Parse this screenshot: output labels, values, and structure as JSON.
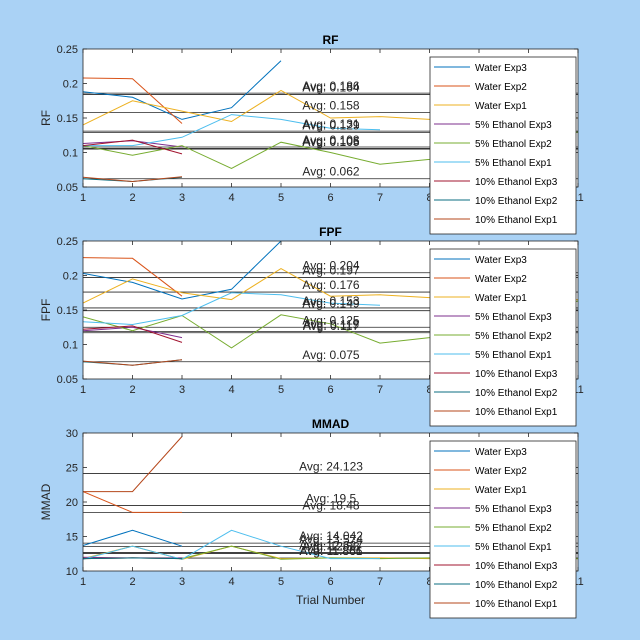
{
  "figure": {
    "background": "#aad2f5"
  },
  "series_colors": [
    "#0072BD",
    "#D95319",
    "#EDB120",
    "#7E2F8E",
    "#77AC30",
    "#4DBEEE",
    "#A2142F",
    "#0B6E80",
    "#B5471B"
  ],
  "chart_data": [
    {
      "type": "line",
      "title": "RF",
      "xlabel": "",
      "ylabel": "RF",
      "xlim": [
        1,
        11
      ],
      "ylim": [
        0.05,
        0.25
      ],
      "xticks": [
        "1",
        "2",
        "3",
        "4",
        "5",
        "6",
        "7",
        "8",
        "9",
        "10",
        "11"
      ],
      "yticks": [
        "0.05",
        "0.1",
        "0.15",
        "0.2",
        "0.25"
      ],
      "legend_location": "top-right",
      "series": [
        {
          "name": "Water Exp3",
          "x": [
            1,
            2,
            3,
            4,
            5
          ],
          "y": [
            0.188,
            0.18,
            0.148,
            0.165,
            0.233
          ]
        },
        {
          "name": "Water Exp2",
          "x": [
            1,
            2,
            3
          ],
          "y": [
            0.208,
            0.207,
            0.142
          ]
        },
        {
          "name": "Water Exp1",
          "x": [
            1,
            2,
            3,
            4,
            5,
            6,
            7,
            8,
            9,
            10,
            11
          ],
          "y": [
            0.14,
            0.175,
            0.16,
            0.145,
            0.19,
            0.15,
            0.152,
            0.148,
            0.15,
            0.152,
            0.15
          ]
        },
        {
          "name": "5% Ethanol Exp3",
          "x": [
            1,
            2,
            3
          ],
          "y": [
            0.113,
            0.117,
            0.108
          ]
        },
        {
          "name": "5% Ethanol Exp2",
          "x": [
            1,
            2,
            3,
            4,
            5,
            6,
            7,
            8,
            9,
            10,
            11
          ],
          "y": [
            0.11,
            0.096,
            0.11,
            0.077,
            0.115,
            0.1,
            0.083,
            0.09,
            0.1,
            0.11,
            0.13
          ]
        },
        {
          "name": "5% Ethanol Exp1",
          "x": [
            1,
            2,
            3,
            4,
            5,
            6,
            7
          ],
          "y": [
            0.11,
            0.11,
            0.122,
            0.155,
            0.148,
            0.135,
            0.133
          ]
        },
        {
          "name": "10% Ethanol Exp3",
          "x": [
            1,
            2,
            3
          ],
          "y": [
            0.11,
            0.118,
            0.098
          ]
        },
        {
          "name": "10% Ethanol Exp2",
          "x": [
            1,
            2,
            3
          ],
          "y": [
            0.062,
            0.058,
            0.064
          ]
        },
        {
          "name": "10% Ethanol Exp1",
          "x": [
            1,
            2,
            3
          ],
          "y": [
            0.064,
            0.058,
            0.065
          ]
        }
      ],
      "averages": [
        {
          "label": "Avg: 0.186",
          "value": 0.186
        },
        {
          "label": "Avg: 0.184",
          "value": 0.184
        },
        {
          "label": "Avg: 0.158",
          "value": 0.158
        },
        {
          "label": "Avg: 0.131",
          "value": 0.131
        },
        {
          "label": "Avg: 0.129",
          "value": 0.129
        },
        {
          "label": "Avg: 0.108",
          "value": 0.108
        },
        {
          "label": "Avg: 0.106",
          "value": 0.106
        },
        {
          "label": "Avg: 0.105",
          "value": 0.105
        },
        {
          "label": "Avg: 0.062",
          "value": 0.062
        }
      ]
    },
    {
      "type": "line",
      "title": "FPF",
      "xlabel": "",
      "ylabel": "FPF",
      "xlim": [
        1,
        11
      ],
      "ylim": [
        0.05,
        0.25
      ],
      "xticks": [
        "1",
        "2",
        "3",
        "4",
        "5",
        "6",
        "7",
        "8",
        "9",
        "10",
        "11"
      ],
      "yticks": [
        "0.05",
        "0.1",
        "0.15",
        "0.2",
        "0.25"
      ],
      "legend_location": "top-right",
      "series": [
        {
          "name": "Water Exp3",
          "x": [
            1,
            2,
            3,
            4,
            5
          ],
          "y": [
            0.203,
            0.19,
            0.166,
            0.18,
            0.25
          ]
        },
        {
          "name": "Water Exp2",
          "x": [
            1,
            2,
            3
          ],
          "y": [
            0.226,
            0.225,
            0.17
          ]
        },
        {
          "name": "Water Exp1",
          "x": [
            1,
            2,
            3,
            4,
            5,
            6,
            7,
            8,
            9,
            10,
            11
          ],
          "y": [
            0.16,
            0.195,
            0.175,
            0.165,
            0.21,
            0.17,
            0.172,
            0.168,
            0.17,
            0.16,
            0.165
          ]
        },
        {
          "name": "5% Ethanol Exp3",
          "x": [
            1,
            2,
            3
          ],
          "y": [
            0.12,
            0.125,
            0.11
          ]
        },
        {
          "name": "5% Ethanol Exp2",
          "x": [
            1,
            2,
            3,
            4,
            5,
            6,
            7,
            8,
            9,
            10,
            11
          ],
          "y": [
            0.14,
            0.12,
            0.142,
            0.095,
            0.143,
            0.13,
            0.102,
            0.11,
            0.12,
            0.14,
            0.163
          ]
        },
        {
          "name": "5% Ethanol Exp1",
          "x": [
            1,
            2,
            3,
            4,
            5,
            6,
            7
          ],
          "y": [
            0.133,
            0.129,
            0.142,
            0.175,
            0.172,
            0.16,
            0.157
          ]
        },
        {
          "name": "10% Ethanol Exp3",
          "x": [
            1,
            2,
            3
          ],
          "y": [
            0.122,
            0.127,
            0.103
          ]
        },
        {
          "name": "10% Ethanol Exp2",
          "x": [
            1,
            2,
            3
          ],
          "y": [
            0.075,
            0.07,
            0.078
          ]
        },
        {
          "name": "10% Ethanol Exp1",
          "x": [
            1,
            2,
            3
          ],
          "y": [
            0.076,
            0.07,
            0.078
          ]
        }
      ],
      "averages": [
        {
          "label": "Avg: 0.204",
          "value": 0.204
        },
        {
          "label": "Avg: 0.197",
          "value": 0.197
        },
        {
          "label": "Avg: 0.176",
          "value": 0.176
        },
        {
          "label": "Avg: 0.153",
          "value": 0.153
        },
        {
          "label": "Avg: 0.149",
          "value": 0.149
        },
        {
          "label": "Avg: 0.125",
          "value": 0.125
        },
        {
          "label": "Avg: 0.119",
          "value": 0.119
        },
        {
          "label": "Avg: 0.117",
          "value": 0.117
        },
        {
          "label": "Avg: 0.075",
          "value": 0.075
        }
      ]
    },
    {
      "type": "line",
      "title": "MMAD",
      "xlabel": "Trial Number",
      "ylabel": "MMAD",
      "xlim": [
        1,
        11
      ],
      "ylim": [
        10,
        30
      ],
      "xticks": [
        "1",
        "2",
        "3",
        "4",
        "5",
        "6",
        "7",
        "8",
        "9",
        "10",
        "11"
      ],
      "yticks": [
        "10",
        "15",
        "20",
        "25",
        "30"
      ],
      "legend_location": "top-right",
      "series": [
        {
          "name": "Water Exp3",
          "x": [
            1,
            2,
            3
          ],
          "y": [
            13.7,
            15.9,
            13.6
          ]
        },
        {
          "name": "Water Exp2",
          "x": [
            1,
            2,
            3
          ],
          "y": [
            21.5,
            18.5,
            18.5
          ]
        },
        {
          "name": "Water Exp1",
          "x": [
            1,
            2,
            3,
            4,
            5,
            6,
            7,
            8,
            9,
            10,
            11
          ],
          "y": [
            11.8,
            13.6,
            11.7,
            13.6,
            11.8,
            11.9,
            11.9,
            11.8,
            11.9,
            11.9,
            11.8
          ]
        },
        {
          "name": "5% Ethanol Exp3",
          "x": [
            1,
            2,
            3
          ],
          "y": [
            12.0,
            11.9,
            11.9
          ]
        },
        {
          "name": "5% Ethanol Exp2",
          "x": [
            1,
            2,
            3,
            4,
            5,
            6,
            7,
            8,
            9,
            10,
            11
          ],
          "y": [
            11.8,
            11.9,
            11.8,
            13.6,
            11.7,
            11.9,
            11.8,
            11.9,
            11.8,
            11.9,
            11.8
          ]
        },
        {
          "name": "5% Ethanol Exp1",
          "x": [
            1,
            2,
            3,
            4,
            5,
            6,
            7
          ],
          "y": [
            11.7,
            13.6,
            11.7,
            15.9,
            13.6,
            11.8,
            11.8
          ]
        },
        {
          "name": "10% Ethanol Exp3",
          "x": [
            1,
            2,
            3
          ],
          "y": [
            11.8,
            11.9,
            11.8
          ]
        },
        {
          "name": "10% Ethanol Exp2",
          "x": [
            1,
            2,
            3
          ],
          "y": [
            11.8,
            11.9,
            11.8
          ]
        },
        {
          "name": "10% Ethanol Exp1",
          "x": [
            1,
            2,
            3
          ],
          "y": [
            21.5,
            21.5,
            29.5
          ]
        }
      ],
      "averages": [
        {
          "label": "Avg: 24.123",
          "value": 24.123
        },
        {
          "label": "Avg: 19.5",
          "value": 19.5
        },
        {
          "label": "Avg: 18.48",
          "value": 18.48
        },
        {
          "label": "Avg: 14.042",
          "value": 14.042
        },
        {
          "label": "Avg: 13.574",
          "value": 13.574
        },
        {
          "label": "Avg: 12.687",
          "value": 12.687
        },
        {
          "label": "Avg: 12.53",
          "value": 12.53
        },
        {
          "label": "Avg: 11.866",
          "value": 11.866
        },
        {
          "label": "Avg: 11.861",
          "value": 11.861
        }
      ]
    }
  ]
}
